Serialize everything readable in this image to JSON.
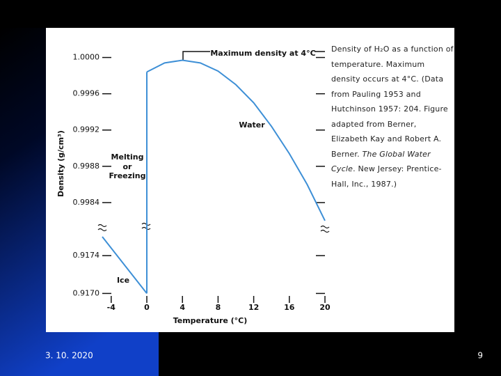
{
  "chart_data": [
    {
      "type": "line",
      "y_label": "Density (g/cm³)",
      "annotation": "Maximum density at 4°C",
      "water_label": "Water",
      "phase_label": [
        "Melting",
        "or",
        "Freezing"
      ],
      "series": [
        {
          "name": "Water",
          "color": "#3d8fd6",
          "x": [
            0,
            2,
            4,
            6,
            8,
            10,
            12,
            14,
            16,
            18,
            20
          ],
          "values": [
            0.99984,
            0.99994,
            0.99997,
            0.99994,
            0.99985,
            0.9997,
            0.9995,
            0.99924,
            0.99894,
            0.9986,
            0.9982
          ]
        }
      ],
      "xlim": [
        -5,
        20
      ],
      "ylim": [
        0.9981,
        1.00025
      ],
      "yticks": [
        {
          "value": 1,
          "label": "1.0000"
        },
        0.9996,
        0.9992,
        0.9988,
        0.9984
      ]
    },
    {
      "type": "line",
      "ice_label": "Ice",
      "x_label": "Temperature (°C)",
      "series": [
        {
          "name": "Ice",
          "color": "#3d8fd6",
          "x": [
            -5,
            0
          ],
          "values": [
            0.9176,
            0.917
          ]
        }
      ],
      "xlim": [
        -5,
        20
      ],
      "ylim": [
        0.9169,
        0.9176
      ],
      "yticks": [
        0.9174,
        {
          "value": 0.917,
          "label": "0.9170"
        }
      ],
      "xticks": [
        -4,
        0,
        4,
        8,
        12,
        16,
        20
      ]
    }
  ],
  "caption": {
    "before": "Density of H₂O as a function of temperature. Maximum density occurs at 4°C. (Data from Pauling 1953 and Hutchinson 1957: 204. Figure adapted from Berner, Elizabeth Kay and Robert A. Berner. ",
    "book_title": "The Global Water Cycle",
    "after": ". New Jersey: Prentice-Hall, Inc., 1987.)"
  },
  "slide": {
    "date": "3. 10. 2020",
    "page_number": "9"
  }
}
